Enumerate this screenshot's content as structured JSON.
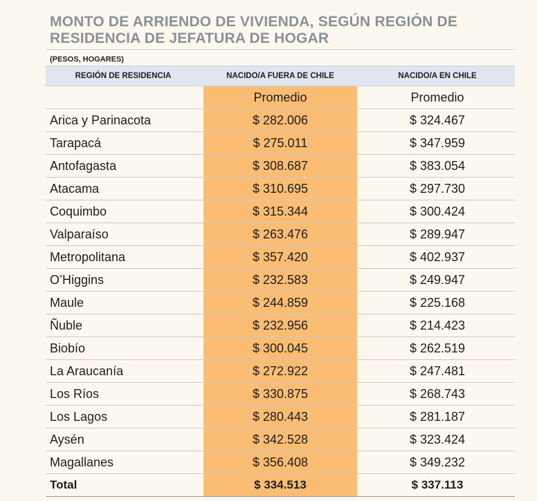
{
  "title": "MONTO DE ARRIENDO DE VIVIENDA, SEGÚN  REGIÓN DE RESIDENCIA DE JEFATURA DE HOGAR",
  "subtitle": "(PESOS, HOGARES)",
  "colors": {
    "highlight_column": "#fbbd74",
    "header_bg": "#dfe6ef",
    "title_color": "#8a9096"
  },
  "chart_data": {
    "type": "table",
    "title": "MONTO DE ARRIENDO DE VIVIENDA, SEGÚN  REGIÓN DE RESIDENCIA DE JEFATURA DE HOGAR",
    "subtitle": "(PESOS, HOGARES)",
    "columns": [
      "REGIÓN DE RESIDENCIA",
      "NACIDO/A FUERA DE CHILE",
      "NACIDO/A EN CHILE"
    ],
    "subheader": [
      "",
      "Promedio",
      "Promedio"
    ],
    "rows": [
      {
        "region": "Arica y Parinacota",
        "fuera": "$ 282.006",
        "chile": "$ 324.467"
      },
      {
        "region": "Tarapacá",
        "fuera": "$ 275.011",
        "chile": "$ 347.959"
      },
      {
        "region": "Antofagasta",
        "fuera": "$ 308.687",
        "chile": "$ 383.054"
      },
      {
        "region": "Atacama",
        "fuera": "$ 310.695",
        "chile": "$ 297.730"
      },
      {
        "region": "Coquimbo",
        "fuera": "$ 315.344",
        "chile": "$ 300.424"
      },
      {
        "region": "Valparaíso",
        "fuera": "$ 263.476",
        "chile": "$ 289.947"
      },
      {
        "region": "Metropolitana",
        "fuera": "$ 357.420",
        "chile": "$ 402.937"
      },
      {
        "region": "O’Higgins",
        "fuera": "$ 232.583",
        "chile": "$ 249.947"
      },
      {
        "region": "Maule",
        "fuera": "$ 244.859",
        "chile": "$ 225.168"
      },
      {
        "region": "Ñuble",
        "fuera": "$ 232.956",
        "chile": "$ 214.423"
      },
      {
        "region": "Biobío",
        "fuera": "$ 300.045",
        "chile": "$ 262.519"
      },
      {
        "region": "La Araucanía",
        "fuera": "$ 272.922",
        "chile": "$ 247.481"
      },
      {
        "region": "Los Ríos",
        "fuera": "$ 330.875",
        "chile": "$ 268.743"
      },
      {
        "region": "Los Lagos",
        "fuera": "$ 280.443",
        "chile": "$ 281.187"
      },
      {
        "region": "Aysén",
        "fuera": "$ 342.528",
        "chile": "$ 323.424"
      },
      {
        "region": "Magallanes",
        "fuera": "$ 356.408",
        "chile": "$ 349.232"
      }
    ],
    "total": {
      "region": "Total",
      "fuera": "$ 334.513",
      "chile": "$ 337.113"
    }
  }
}
